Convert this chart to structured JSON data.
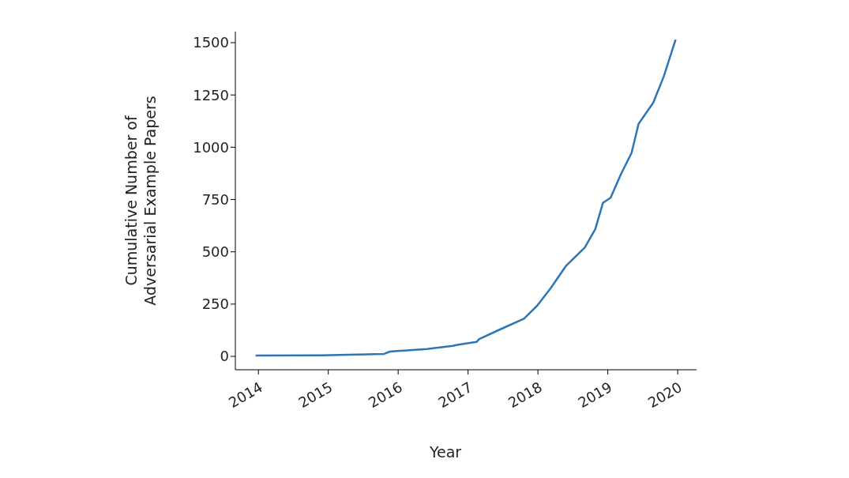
{
  "chart_data": {
    "type": "line",
    "xlabel": "Year",
    "ylabel": "Cumulative Number of Adversarial Example Papers",
    "x": [
      2013.96,
      2014.9,
      2015.8,
      2015.88,
      2016.41,
      2016.78,
      2016.86,
      2017.12,
      2017.16,
      2017.42,
      2017.8,
      2017.99,
      2018.18,
      2018.4,
      2018.67,
      2018.82,
      2018.93,
      2019.04,
      2019.19,
      2019.34,
      2019.44,
      2019.65,
      2019.8,
      2019.97
    ],
    "series": [
      {
        "color": "#2e75b6",
        "values": [
          4,
          5,
          12,
          23,
          35,
          50,
          56,
          69,
          83,
          123,
          180,
          243,
          325,
          432,
          520,
          608,
          734,
          759,
          873,
          973,
          1112,
          1213,
          1338,
          1515
        ]
      }
    ],
    "xlim": [
      2013.67,
      2020.27
    ],
    "xticks": [
      2014,
      2015,
      2016,
      2017,
      2018,
      2019,
      2020
    ],
    "ylim": [
      -64,
      1553
    ],
    "yticks": [
      0,
      250,
      500,
      750,
      1000,
      1250,
      1500
    ],
    "grid": false,
    "legend": false,
    "marker": "none",
    "line_style": "solid"
  }
}
